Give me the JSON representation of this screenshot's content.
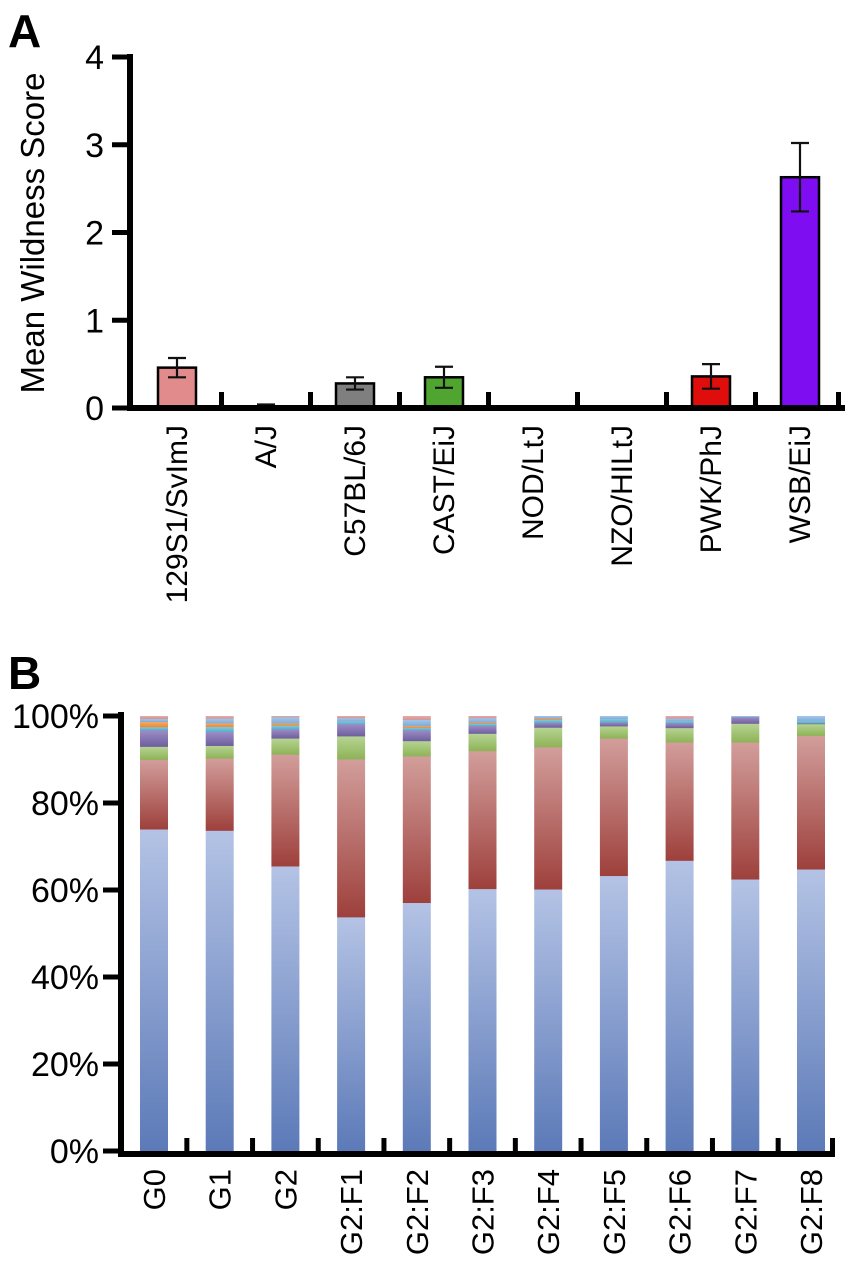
{
  "figure": {
    "panel_a_label": "A",
    "panel_b_label": "B"
  },
  "chart_data": [
    {
      "panel": "A",
      "type": "bar",
      "title": "",
      "ylabel": "Mean Wildness Score",
      "ylim": [
        0,
        4
      ],
      "yticks": [
        0,
        1,
        2,
        3,
        4
      ],
      "grid": false,
      "error_bars": true,
      "categories": [
        "129S1/SvImJ",
        "A/J",
        "C57BL/6J",
        "CAST/EiJ",
        "NOD/LtJ",
        "NZO/HILtJ",
        "PWK/PhJ",
        "WSB/EiJ"
      ],
      "values": [
        0.46,
        0.02,
        0.28,
        0.35,
        0,
        0,
        0.36,
        2.63
      ],
      "errors": [
        0.11,
        0.02,
        0.07,
        0.12,
        0,
        0,
        0.14,
        0.39
      ],
      "bar_colors": [
        "#E18B8D",
        "#111111",
        "#7F7F7F",
        "#4FA52F",
        "#000000",
        "#000000",
        "#E00D0D",
        "#7E0DF2"
      ]
    },
    {
      "panel": "B",
      "type": "stacked-bar-100",
      "title": "",
      "ylabel": "",
      "ylim": [
        0,
        100
      ],
      "ytick_labels": [
        "0%",
        "20%",
        "40%",
        "60%",
        "80%",
        "100%"
      ],
      "grid": false,
      "legend": "none",
      "categories": [
        "G0",
        "G1",
        "G2",
        "G2:F1",
        "G2:F2",
        "G2:F3",
        "G2:F4",
        "G2:F5",
        "G2:F6",
        "G2:F7",
        "G2:F8"
      ],
      "series": [
        {
          "name": "blue",
          "color_top": "#B4C3E5",
          "color_bottom": "#5C7AB8",
          "values": [
            74.0,
            73.7,
            65.5,
            53.8,
            57.1,
            60.3,
            60.2,
            63.3,
            66.8,
            62.5,
            64.8
          ]
        },
        {
          "name": "red",
          "color_top": "#D29E9B",
          "color_bottom": "#9E403C",
          "values": [
            16.0,
            16.6,
            25.7,
            36.3,
            33.7,
            31.7,
            32.7,
            31.6,
            27.2,
            31.5,
            30.7
          ]
        },
        {
          "name": "green",
          "color_top": "#B7D494",
          "color_bottom": "#8DB356",
          "values": [
            3.0,
            2.9,
            3.7,
            5.3,
            3.5,
            4.0,
            4.5,
            2.8,
            3.3,
            4.3,
            2.7
          ]
        },
        {
          "name": "purple",
          "color_top": "#9C8EC6",
          "color_bottom": "#6F5E9E",
          "values": [
            3.8,
            3.2,
            2.1,
            2.8,
            2.5,
            1.8,
            1.1,
            0.9,
            1.1,
            1.5,
            0.2
          ]
        },
        {
          "name": "teal",
          "color_top": "#8CC9DA",
          "color_bottom": "#55AFC8",
          "values": [
            0.7,
            1.2,
            0.9,
            0.6,
            0.6,
            0.5,
            0.7,
            0.8,
            0.5,
            0.0,
            0.6
          ]
        },
        {
          "name": "orange",
          "color_top": "#F5AE6B",
          "color_bottom": "#EC8633",
          "values": [
            1.2,
            0.8,
            0.5,
            0.0,
            0.4,
            0.3,
            0.3,
            0.0,
            0.0,
            0.0,
            0.0
          ]
        },
        {
          "name": "skyblue",
          "color_top": "#A5C7E9",
          "color_bottom": "#7FACDB",
          "values": [
            0.7,
            1.1,
            1.4,
            0.8,
            1.4,
            1.0,
            0.5,
            0.6,
            0.6,
            0.2,
            1.0
          ]
        },
        {
          "name": "pink",
          "color_top": "#E6ACA9",
          "color_bottom": "#D6928F",
          "values": [
            0.6,
            0.5,
            0.2,
            0.4,
            0.8,
            0.4,
            0.0,
            0.0,
            0.5,
            0.0,
            0.0
          ]
        }
      ]
    }
  ]
}
